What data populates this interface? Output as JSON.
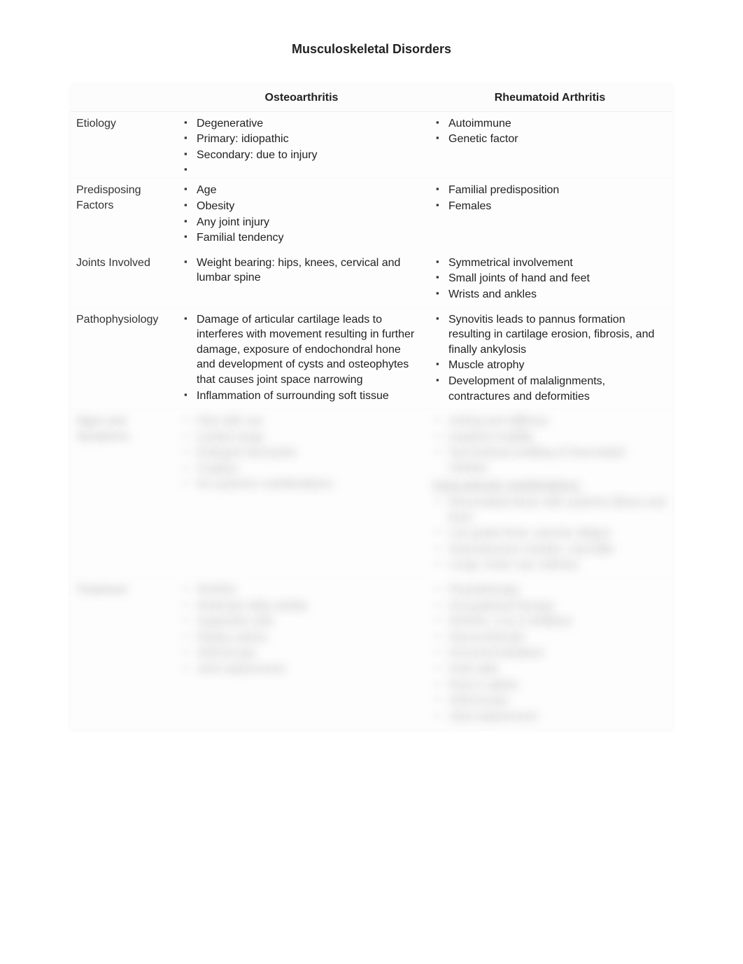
{
  "title": "Musculoskeletal Disorders",
  "columns": {
    "label": "",
    "col_a": "Osteoarthritis",
    "col_b": "Rheumatoid Arthritis"
  },
  "rows": [
    {
      "label": "Etiology",
      "col_a": [
        "Degenerative",
        "Primary:  idiopathic",
        "Secondary:  due to injury",
        ""
      ],
      "col_b": [
        "Autoimmune",
        "Genetic factor"
      ]
    },
    {
      "label": "Predisposing Factors",
      "col_a": [
        "Age",
        "Obesity",
        "Any joint injury",
        "Familial tendency"
      ],
      "col_b": [
        "Familial predisposition",
        "Females"
      ]
    },
    {
      "label": "Joints Involved",
      "col_a": [
        "Weight bearing:  hips, knees, cervical and lumbar spine"
      ],
      "col_b": [
        "Symmetrical involvement",
        "Small joints of hand and feet",
        "Wrists and ankles"
      ]
    },
    {
      "label": "Pathophysiology",
      "col_a": [
        "Damage of articular cartilage leads to interferes with movement resulting in further damage, exposure of endochondral hone and development of cysts and osteophytes that causes joint space narrowing",
        "Inflammation of surrounding soft tissue"
      ],
      "col_b": [
        "Synovitis leads to pannus formation resulting in cartilage erosion, fibrosis, and finally ankylosis",
        "Muscle atrophy",
        "Development of malalignments, contractures and deformities"
      ]
    }
  ],
  "blurred_rows": [
    {
      "label": "Signs and Symptoms",
      "col_a": [
        "Pain with use",
        "Limited range",
        "Enlarged hard joints",
        "Crepitus",
        "No systemic manifestations"
      ],
      "col_b": [
        "Aching and stiffness",
        "Impaired mobility",
        "Symmetrical swelling of rheumatoid nodules"
      ],
      "col_b_section_header": "Extra-articular manifestations:",
      "col_b_section": [
        "Rheumatoid factor with systemic illness and fever",
        "Low grade fever, anemia, fatigue",
        "Subcutaneous nodules, vasculitis",
        "Lungs, heart, eye, kidneys"
      ]
    },
    {
      "label": "Treatment",
      "col_a": [
        "NSAIDs",
        "Moderate daily activity",
        "Supportive aids",
        "Dietary advice",
        "Arthroscopy",
        "Joint replacement"
      ],
      "col_b": [
        "Physiotherapy",
        "Occupational therapy",
        "NSAIDs, Cox-2 inhibitors",
        "Glucocorticoids",
        "Immunomodulators",
        "Gold salts",
        "Rest in splints",
        "Arthroscopy",
        "Joint replacement"
      ]
    }
  ]
}
